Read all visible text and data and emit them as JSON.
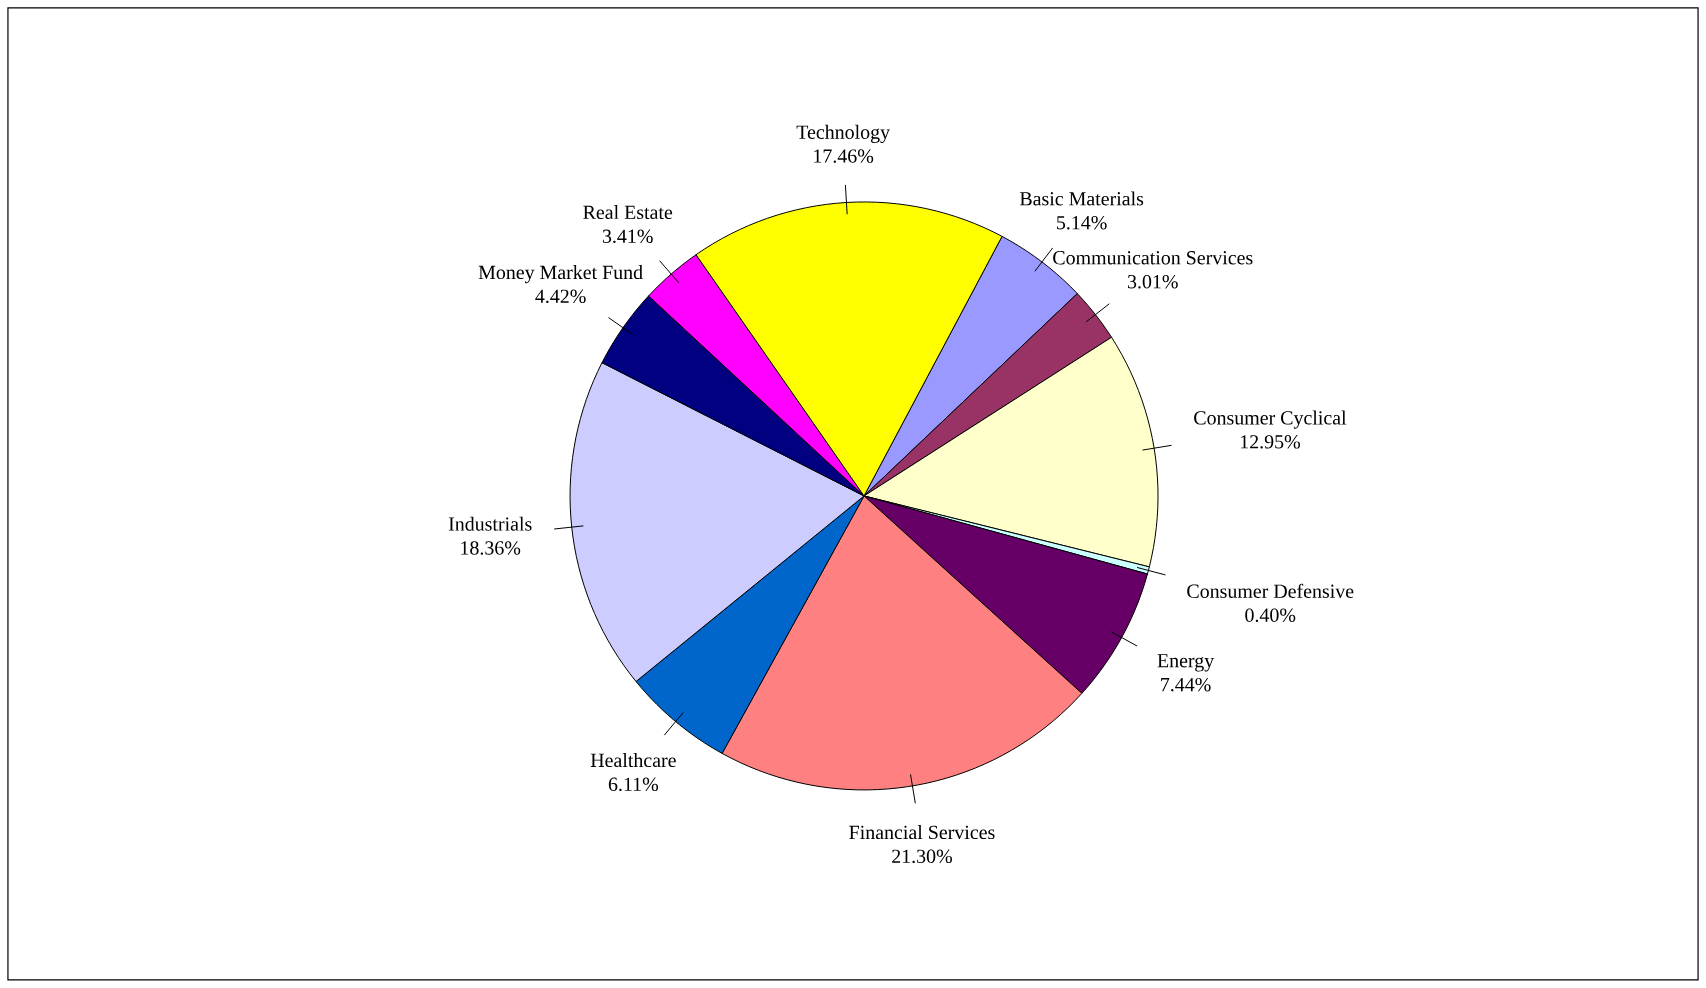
{
  "chart_data": {
    "type": "pie",
    "categories": [
      "Basic Materials",
      "Communication Services",
      "Consumer Cyclical",
      "Consumer Defensive",
      "Energy",
      "Financial Services",
      "Healthcare",
      "Industrials",
      "Money Market Fund",
      "Real Estate",
      "Technology"
    ],
    "values": [
      5.14,
      3.01,
      12.95,
      0.4,
      7.44,
      21.3,
      6.11,
      18.36,
      4.42,
      3.41,
      17.46
    ],
    "value_labels": [
      "5.14%",
      "3.01%",
      "12.95%",
      "0.40%",
      "7.44%",
      "21.30%",
      "6.11%",
      "18.36%",
      "4.42%",
      "3.41%",
      "17.46%"
    ],
    "colors": [
      "#9999ff",
      "#993366",
      "#ffffcc",
      "#ccffff",
      "#660066",
      "#ff8080",
      "#0066cc",
      "#ccccff",
      "#000080",
      "#ff00ff",
      "#ffff00"
    ]
  }
}
